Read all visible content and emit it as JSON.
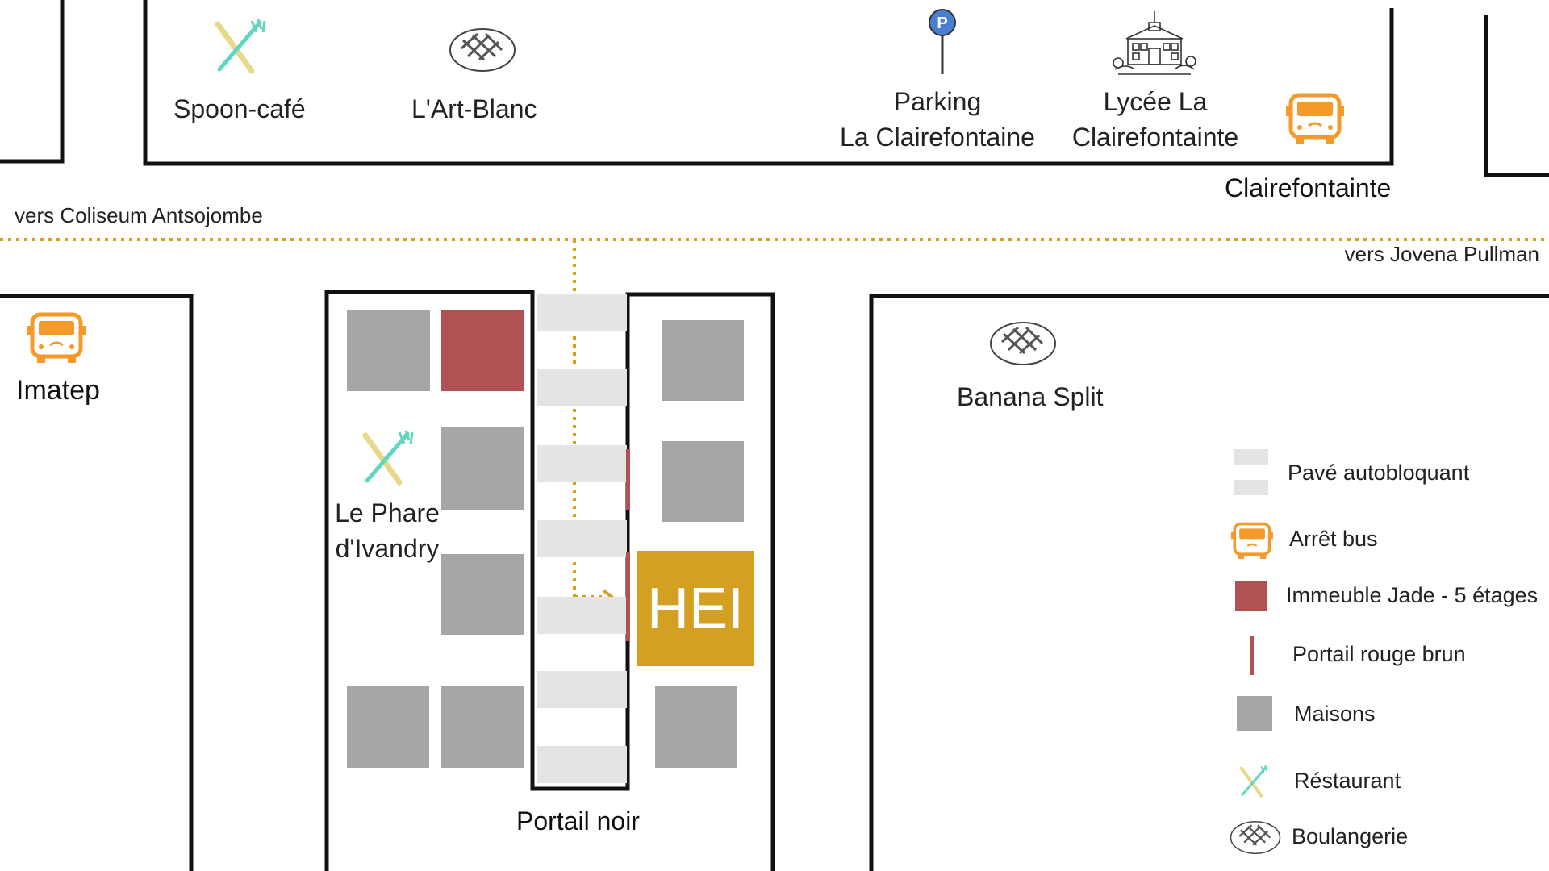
{
  "places": {
    "spoon_cafe": "Spoon-café",
    "art_blanc": "L'Art-Blanc",
    "parking_line1": "Parking",
    "parking_line2": "La Clairefontaine",
    "lycee_line1": "Lycée La",
    "lycee_line2": "Clairefontainte",
    "bus_clairefontainte": "Clairefontainte",
    "bus_imatep": "Imatep",
    "phare_line1": "Le Phare",
    "phare_line2": "d'Ivandry",
    "banana_split": "Banana Split",
    "hei": "HEI",
    "portail_noir": "Portail noir"
  },
  "directions": {
    "west": "vers Coliseum Antsojombe",
    "east": "vers Jovena Pullman"
  },
  "legend": {
    "pave": "Pavé autobloquant",
    "bus": "Arrêt bus",
    "jade": "Immeuble Jade - 5 étages",
    "portail": "Portail rouge brun",
    "maisons": "Maisons",
    "restaurant": "Réstaurant",
    "boulangerie": "Boulangerie"
  },
  "icons": {
    "restaurant": "fork-knife-icon",
    "bakery": "bread-icon",
    "parking": "parking-sign-icon",
    "school": "school-building-icon",
    "bus": "bus-icon"
  },
  "colors": {
    "hei": "#d4a022",
    "jade": "#b05253",
    "house": "#a6a6a6",
    "pave": "#e4e4e4",
    "bus": "#f39a2b",
    "route": "#d4a022",
    "restaurant_fork": "#5fd6c0",
    "restaurant_knife": "#e8d88a",
    "parking": "#4a7fd0"
  }
}
